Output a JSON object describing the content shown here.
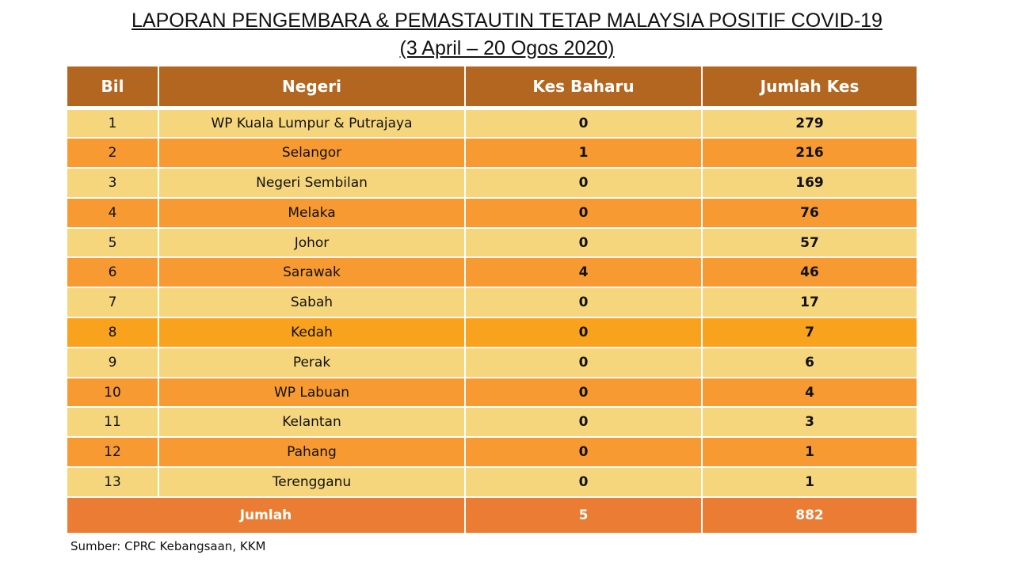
{
  "header": {
    "title": "LAPORAN PENGEMBARA & PEMASTAUTIN TETAP MALAYSIA POSITIF COVID-19",
    "subtitle": "(3 April –  20 Ogos 2020)"
  },
  "table": {
    "columns": [
      "Bil",
      "Negeri",
      "Kes Baharu",
      "Jumlah Kes"
    ],
    "rows": [
      [
        1,
        "WP Kuala Lumpur & Putrajaya",
        0,
        279
      ],
      [
        2,
        "Selangor",
        1,
        216
      ],
      [
        3,
        "Negeri Sembilan",
        0,
        169
      ],
      [
        4,
        "Melaka",
        0,
        76
      ],
      [
        5,
        "Johor",
        0,
        57
      ],
      [
        6,
        "Sarawak",
        4,
        46
      ],
      [
        7,
        "Sabah",
        0,
        17
      ],
      [
        8,
        "Kedah",
        0,
        7
      ],
      [
        9,
        "Perak",
        0,
        6
      ],
      [
        10,
        "WP Labuan",
        0,
        4
      ],
      [
        11,
        "Kelantan",
        0,
        3
      ],
      [
        12,
        "Pahang",
        0,
        1
      ],
      [
        13,
        "Terengganu",
        0,
        1
      ]
    ],
    "total": {
      "label": "Jumlah",
      "kes_baharu": 5,
      "jumlah_kes": 882
    }
  },
  "footer": {
    "source": "Sumber: CPRC Kebangsaan, KKM"
  }
}
